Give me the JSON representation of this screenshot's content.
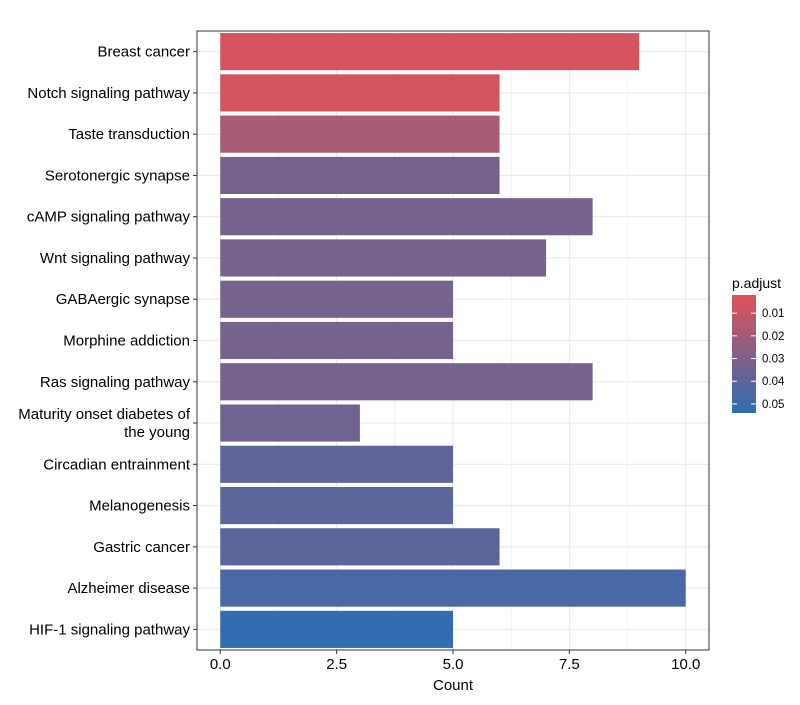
{
  "chart_data": {
    "type": "bar",
    "orientation": "horizontal",
    "xlabel": "Count",
    "ylabel": "",
    "xlim": [
      -0.5,
      10.5
    ],
    "x_ticks": [
      0,
      2.5,
      5,
      7.5,
      10
    ],
    "x_tick_labels": [
      "0.0",
      "2.5",
      "5.0",
      "7.5",
      "10.0"
    ],
    "grid": true,
    "categories": [
      "Breast cancer",
      "Notch signaling pathway",
      "Taste transduction",
      "Serotonergic synapse",
      "cAMP signaling pathway",
      "Wnt signaling pathway",
      "GABAergic synapse",
      "Morphine addiction",
      "Ras signaling pathway",
      "Maturity onset diabetes of the young",
      "Circadian entrainment",
      "Melanogenesis",
      "Gastric cancer",
      "Alzheimer disease",
      "HIF-1 signaling pathway"
    ],
    "category_label_lines": [
      [
        "Breast cancer"
      ],
      [
        "Notch signaling pathway"
      ],
      [
        "Taste transduction"
      ],
      [
        "Serotonergic synapse"
      ],
      [
        "cAMP signaling pathway"
      ],
      [
        "Wnt signaling pathway"
      ],
      [
        "GABAergic synapse"
      ],
      [
        "Morphine addiction"
      ],
      [
        "Ras signaling pathway"
      ],
      [
        "Maturity onset diabetes of",
        "the young"
      ],
      [
        "Circadian entrainment"
      ],
      [
        "Melanogenesis"
      ],
      [
        "Gastric cancer"
      ],
      [
        "Alzheimer disease"
      ],
      [
        "HIF-1 signaling pathway"
      ]
    ],
    "values": [
      9,
      6,
      6,
      6,
      8,
      7,
      5,
      5,
      8,
      3,
      5,
      5,
      6,
      10,
      5
    ],
    "p_adjust": [
      0.005,
      0.006,
      0.018,
      0.033,
      0.033,
      0.033,
      0.033,
      0.033,
      0.033,
      0.034,
      0.039,
      0.04,
      0.04,
      0.046,
      0.052
    ],
    "legend": {
      "title": "p.adjust",
      "position": "right",
      "range": [
        0.002,
        0.054
      ],
      "ticks": [
        0.01,
        0.02,
        0.03,
        0.04,
        0.05
      ],
      "tick_labels": [
        "0.01",
        "0.02",
        "0.03",
        "0.04",
        "0.05"
      ],
      "low_color": "#E0525A",
      "high_color": "#2C6DB3"
    },
    "colors": {
      "grid": "#EBEBEB",
      "panel_border": "#333333",
      "text": "#000000"
    }
  }
}
